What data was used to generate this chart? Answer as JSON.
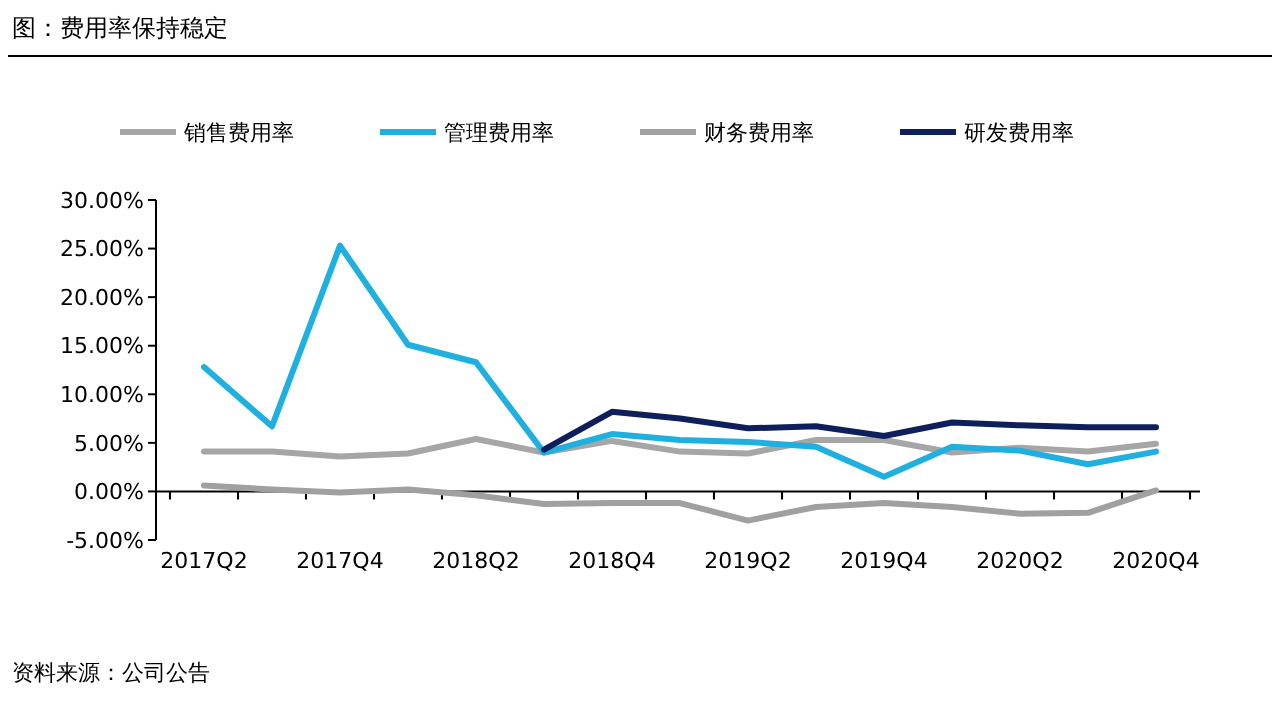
{
  "chart_data": {
    "type": "line",
    "title": "图：费用率保持稳定",
    "categories": [
      "2017Q2",
      null,
      "2017Q4",
      null,
      "2018Q2",
      null,
      "2018Q4",
      null,
      "2019Q2",
      null,
      "2019Q4",
      null,
      "2020Q2",
      null,
      "2020Q4"
    ],
    "series": [
      {
        "name": "销售费用率",
        "color": "#a6a6a6",
        "values": [
          4.1,
          4.1,
          3.6,
          3.9,
          5.4,
          4.0,
          5.2,
          4.1,
          3.9,
          5.3,
          5.3,
          4.0,
          4.5,
          4.1,
          4.9
        ]
      },
      {
        "name": "管理费用率",
        "color": "#1fb0e0",
        "values": [
          12.8,
          6.7,
          25.3,
          15.1,
          13.3,
          4.0,
          5.9,
          5.3,
          5.1,
          4.6,
          1.5,
          4.6,
          4.2,
          2.8,
          4.1
        ]
      },
      {
        "name": "财务费用率",
        "color": "#a0a0a0",
        "values": [
          0.6,
          0.2,
          -0.1,
          0.2,
          -0.4,
          -1.3,
          -1.2,
          -1.2,
          -3.0,
          -1.6,
          -1.2,
          -1.6,
          -2.3,
          -2.2,
          0.1
        ]
      },
      {
        "name": "研发费用率",
        "color": "#0f1f5c",
        "values": [
          null,
          null,
          null,
          null,
          null,
          4.3,
          8.2,
          7.5,
          6.5,
          6.7,
          5.7,
          7.1,
          6.8,
          6.6,
          6.6
        ]
      }
    ],
    "ylim": [
      -5,
      30
    ],
    "yticks": [
      {
        "value": -5,
        "label": "-5.00%"
      },
      {
        "value": 0,
        "label": "0.00%"
      },
      {
        "value": 5,
        "label": "5.00%"
      },
      {
        "value": 10,
        "label": "10.00%"
      },
      {
        "value": 15,
        "label": "15.00%"
      },
      {
        "value": 20,
        "label": "20.00%"
      },
      {
        "value": 25,
        "label": "25.00%"
      },
      {
        "value": 30,
        "label": "30.00%"
      }
    ],
    "grid": false,
    "legend": "top",
    "marker": "none",
    "line_style": "solid",
    "annotations": [
      "资料来源：公司公告"
    ]
  }
}
